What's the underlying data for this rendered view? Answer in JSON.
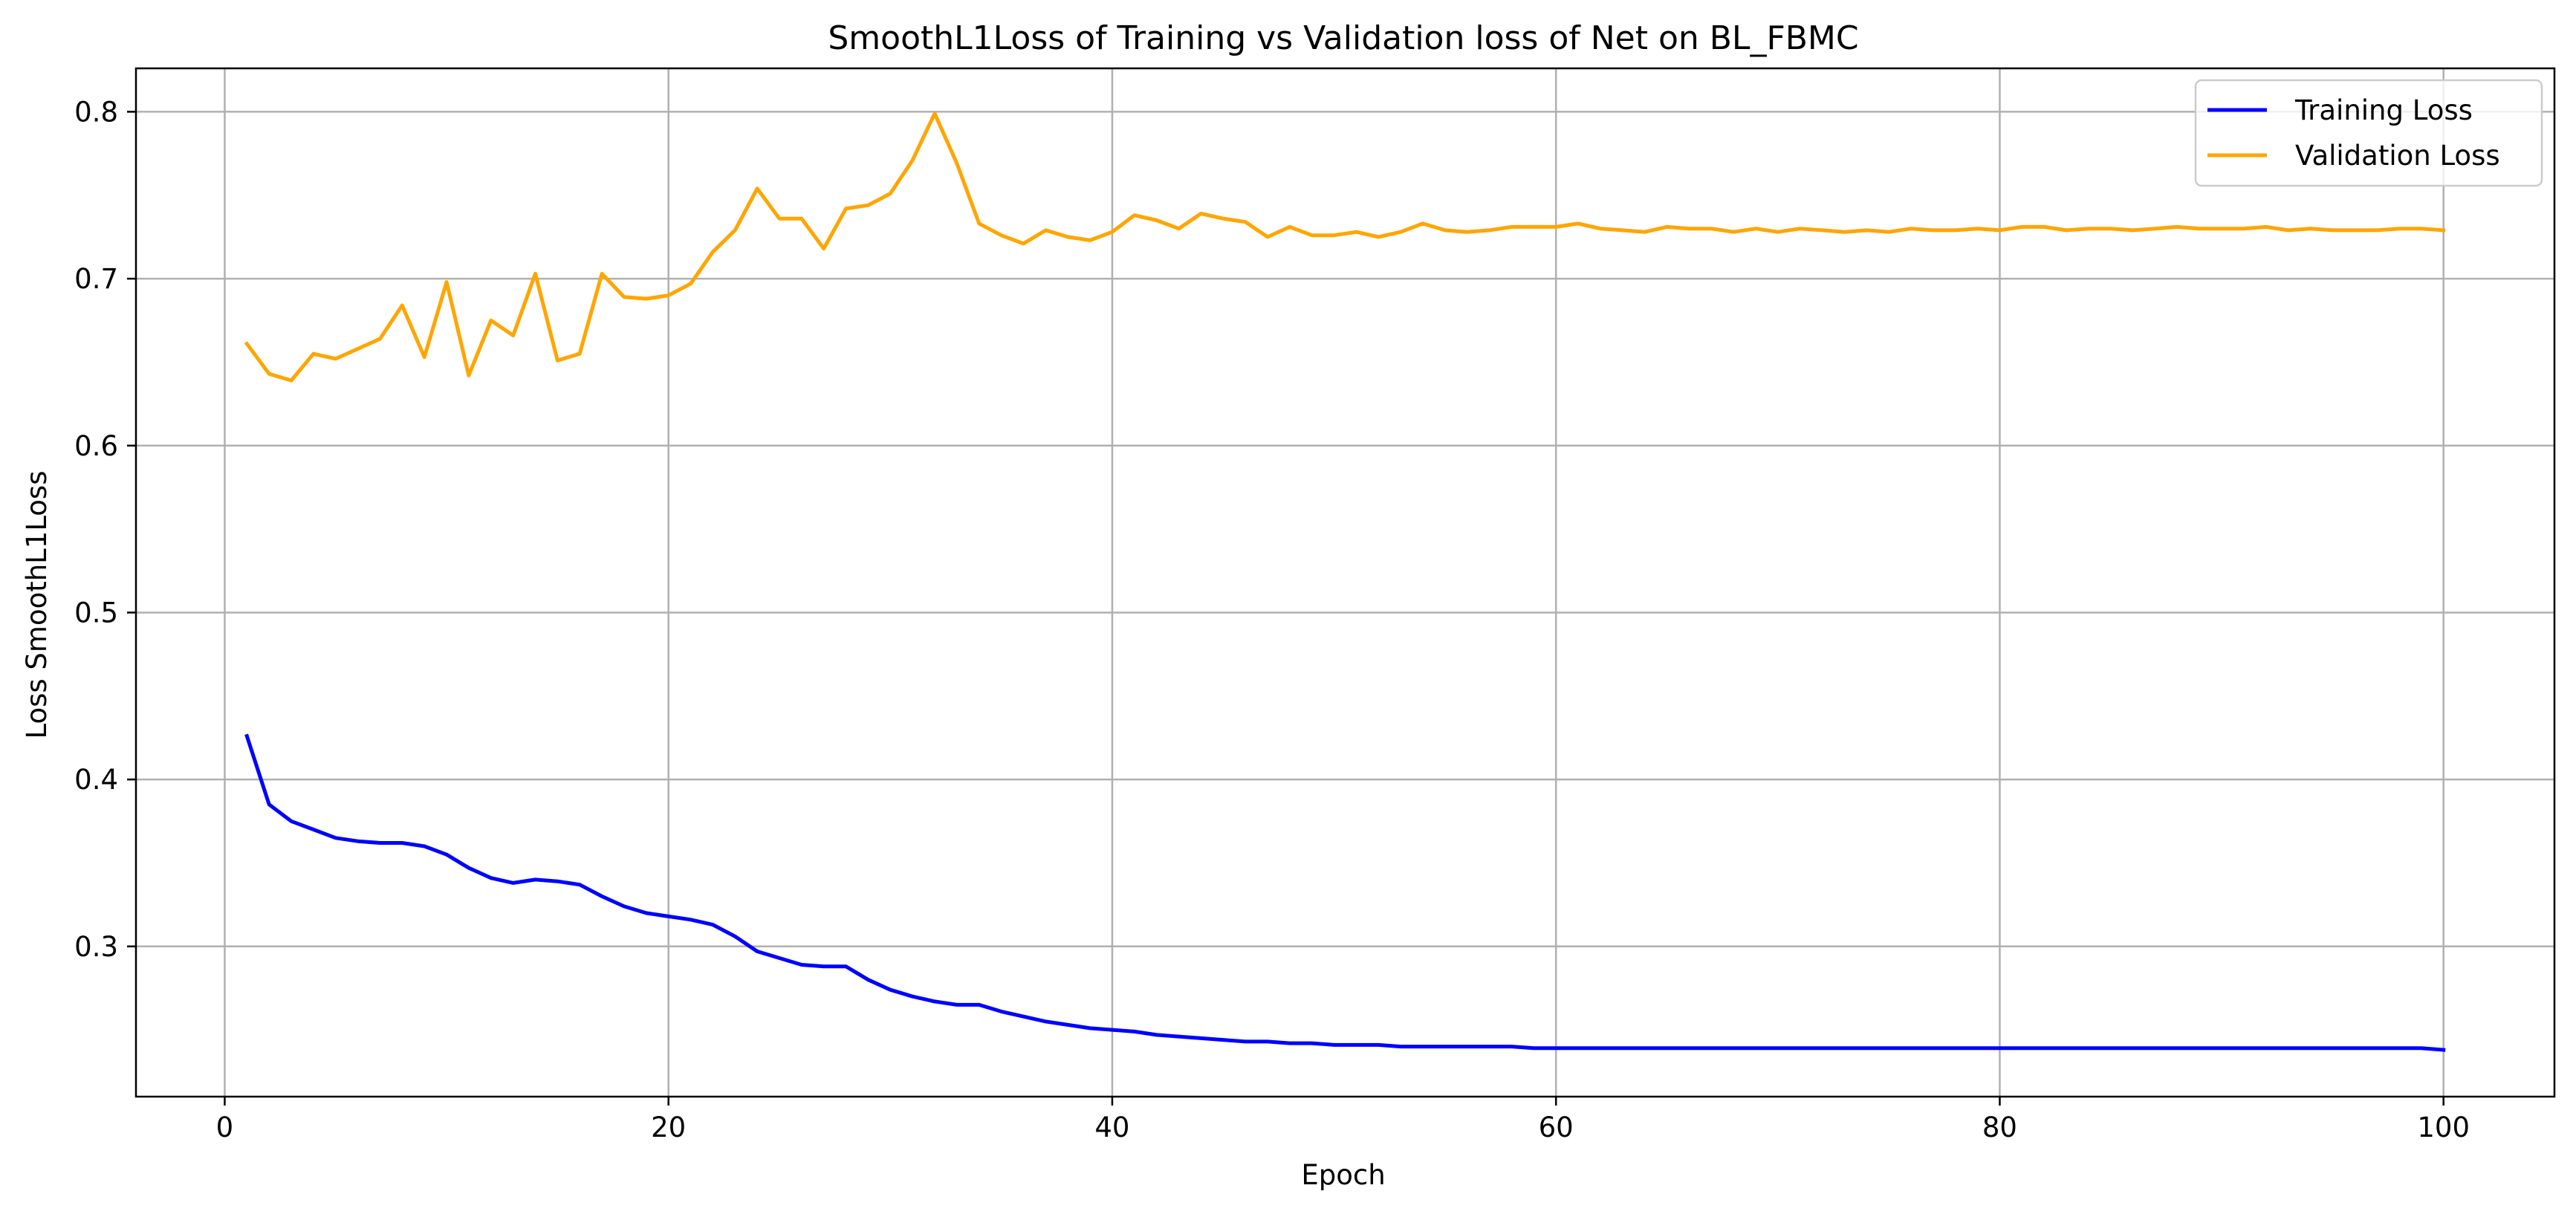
{
  "chart_data": {
    "type": "line",
    "title": "SmoothL1Loss of Training vs Validation loss of Net on BL_FBMC",
    "xlabel": "Epoch",
    "ylabel": "Loss SmoothL1Loss",
    "xlim": [
      -4,
      105
    ],
    "ylim": [
      0.21,
      0.826
    ],
    "xticks": [
      0,
      20,
      40,
      60,
      80,
      100
    ],
    "yticks": [
      0.3,
      0.4,
      0.5,
      0.6,
      0.7,
      0.8
    ],
    "xtick_labels": [
      "0",
      "20",
      "40",
      "60",
      "80",
      "100"
    ],
    "ytick_labels": [
      "0.3",
      "0.4",
      "0.5",
      "0.6",
      "0.7",
      "0.8"
    ],
    "grid": true,
    "legend_position": "top-right",
    "series": [
      {
        "name": "Training Loss",
        "color": "#0000ff",
        "x": [
          1,
          2,
          3,
          4,
          5,
          6,
          7,
          8,
          9,
          10,
          11,
          12,
          13,
          14,
          15,
          16,
          17,
          18,
          19,
          20,
          21,
          22,
          23,
          24,
          25,
          26,
          27,
          28,
          29,
          30,
          31,
          32,
          33,
          34,
          35,
          36,
          37,
          38,
          39,
          40,
          41,
          42,
          43,
          44,
          45,
          46,
          47,
          48,
          49,
          50,
          51,
          52,
          53,
          54,
          55,
          56,
          57,
          58,
          59,
          60,
          61,
          62,
          63,
          64,
          65,
          66,
          67,
          68,
          69,
          70,
          71,
          72,
          73,
          74,
          75,
          76,
          77,
          78,
          79,
          80,
          81,
          82,
          83,
          84,
          85,
          86,
          87,
          88,
          89,
          90,
          91,
          92,
          93,
          94,
          95,
          96,
          97,
          98,
          99,
          100
        ],
        "values": [
          0.426,
          0.385,
          0.375,
          0.37,
          0.365,
          0.363,
          0.362,
          0.362,
          0.36,
          0.355,
          0.347,
          0.341,
          0.338,
          0.34,
          0.339,
          0.337,
          0.33,
          0.324,
          0.32,
          0.318,
          0.316,
          0.313,
          0.306,
          0.297,
          0.293,
          0.289,
          0.288,
          0.288,
          0.28,
          0.274,
          0.27,
          0.267,
          0.265,
          0.265,
          0.261,
          0.258,
          0.255,
          0.253,
          0.251,
          0.25,
          0.249,
          0.247,
          0.246,
          0.245,
          0.244,
          0.243,
          0.243,
          0.242,
          0.242,
          0.241,
          0.241,
          0.241,
          0.24,
          0.24,
          0.24,
          0.24,
          0.24,
          0.24,
          0.239,
          0.239,
          0.239,
          0.239,
          0.239,
          0.239,
          0.239,
          0.239,
          0.239,
          0.239,
          0.239,
          0.239,
          0.239,
          0.239,
          0.239,
          0.239,
          0.239,
          0.239,
          0.239,
          0.239,
          0.239,
          0.239,
          0.239,
          0.239,
          0.239,
          0.239,
          0.239,
          0.239,
          0.239,
          0.239,
          0.239,
          0.239,
          0.239,
          0.239,
          0.239,
          0.239,
          0.239,
          0.239,
          0.239,
          0.239,
          0.239,
          0.238
        ]
      },
      {
        "name": "Validation Loss",
        "color": "#ffa500",
        "x": [
          1,
          2,
          3,
          4,
          5,
          6,
          7,
          8,
          9,
          10,
          11,
          12,
          13,
          14,
          15,
          16,
          17,
          18,
          19,
          20,
          21,
          22,
          23,
          24,
          25,
          26,
          27,
          28,
          29,
          30,
          31,
          32,
          33,
          34,
          35,
          36,
          37,
          38,
          39,
          40,
          41,
          42,
          43,
          44,
          45,
          46,
          47,
          48,
          49,
          50,
          51,
          52,
          53,
          54,
          55,
          56,
          57,
          58,
          59,
          60,
          61,
          62,
          63,
          64,
          65,
          66,
          67,
          68,
          69,
          70,
          71,
          72,
          73,
          74,
          75,
          76,
          77,
          78,
          79,
          80,
          81,
          82,
          83,
          84,
          85,
          86,
          87,
          88,
          89,
          90,
          91,
          92,
          93,
          94,
          95,
          96,
          97,
          98,
          99,
          100
        ],
        "values": [
          0.661,
          0.643,
          0.639,
          0.655,
          0.652,
          0.658,
          0.664,
          0.684,
          0.653,
          0.698,
          0.642,
          0.675,
          0.666,
          0.703,
          0.651,
          0.655,
          0.703,
          0.689,
          0.688,
          0.69,
          0.697,
          0.716,
          0.729,
          0.754,
          0.736,
          0.736,
          0.718,
          0.742,
          0.744,
          0.751,
          0.771,
          0.799,
          0.769,
          0.733,
          0.726,
          0.721,
          0.729,
          0.725,
          0.723,
          0.728,
          0.738,
          0.735,
          0.73,
          0.739,
          0.736,
          0.734,
          0.725,
          0.731,
          0.726,
          0.726,
          0.728,
          0.725,
          0.728,
          0.733,
          0.729,
          0.728,
          0.729,
          0.731,
          0.731,
          0.731,
          0.733,
          0.73,
          0.729,
          0.728,
          0.731,
          0.73,
          0.73,
          0.728,
          0.73,
          0.728,
          0.73,
          0.729,
          0.728,
          0.729,
          0.728,
          0.73,
          0.729,
          0.729,
          0.73,
          0.729,
          0.731,
          0.731,
          0.729,
          0.73,
          0.73,
          0.729,
          0.73,
          0.731,
          0.73,
          0.73,
          0.73,
          0.731,
          0.729,
          0.73,
          0.729,
          0.729,
          0.729,
          0.73,
          0.73,
          0.729
        ]
      }
    ]
  }
}
